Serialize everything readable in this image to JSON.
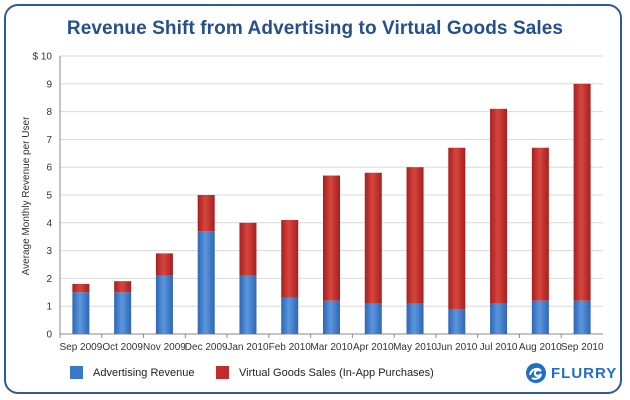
{
  "colors": {
    "advertising": "#3a78c8",
    "virtual_goods": "#c42b2b",
    "frame": "#2f5a95",
    "title": "#25508f",
    "logo": "#1e6fc7"
  },
  "logo": {
    "text": "FLURRY",
    "icon": "flurry-swirl-icon"
  },
  "chart_data": {
    "type": "bar",
    "stacked": true,
    "title": "Revenue Shift from Advertising to Virtual Goods Sales",
    "xlabel": "",
    "ylabel": "Average Monthly Revenue per User",
    "ylim": [
      0,
      10
    ],
    "ytick_labels": [
      "0",
      "1",
      "2",
      "3",
      "4",
      "5",
      "6",
      "7",
      "8",
      "9",
      "$ 10"
    ],
    "grid": "horizontal",
    "legend_position": "bottom",
    "categories": [
      "Sep 2009",
      "Oct 2009",
      "Nov 2009",
      "Dec 2009",
      "Jan 2010",
      "Feb 2010",
      "Mar 2010",
      "Apr 2010",
      "May 2010",
      "Jun 2010",
      "Jul 2010",
      "Aug 2010",
      "Sep 2010"
    ],
    "series": [
      {
        "name": "Advertising Revenue",
        "values": [
          1.5,
          1.5,
          2.1,
          3.7,
          2.1,
          1.3,
          1.2,
          1.1,
          1.1,
          0.9,
          1.1,
          1.2,
          1.2
        ]
      },
      {
        "name": "Virtual Goods Sales (In-App Purchases)",
        "values": [
          0.3,
          0.4,
          0.8,
          1.3,
          1.9,
          2.8,
          4.5,
          4.7,
          4.9,
          5.8,
          7.0,
          5.5,
          7.8
        ]
      }
    ]
  }
}
